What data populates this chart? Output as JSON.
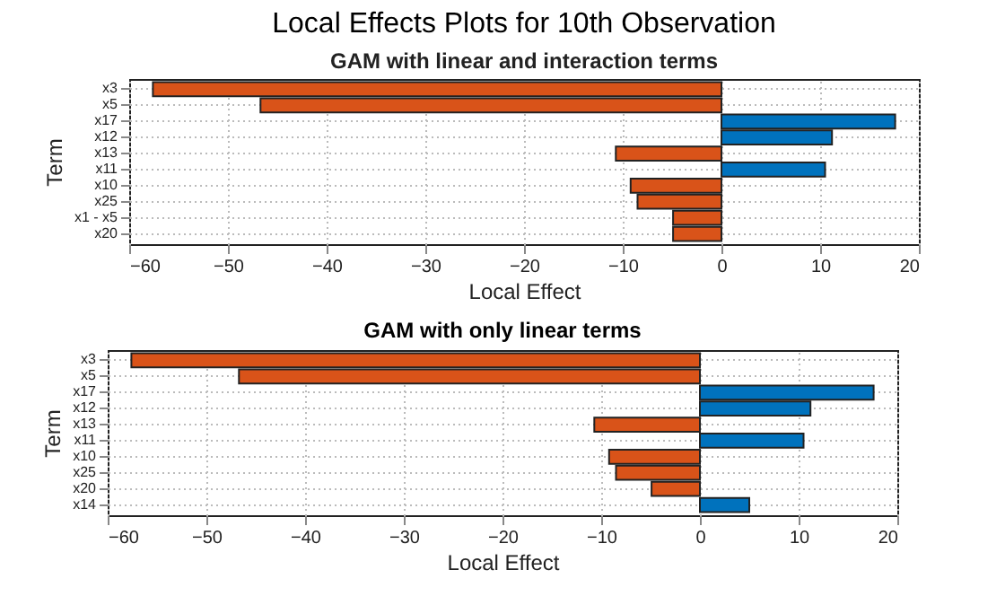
{
  "chart_data": [
    {
      "type": "bar",
      "orientation": "horizontal",
      "title": "Local Effects Plots for 10th Observation",
      "subtitle": "GAM with linear and interaction terms",
      "xlabel": "Local Effect",
      "ylabel": "Term",
      "categories": [
        "x3",
        "x5",
        "x17",
        "x12",
        "x13",
        "x11",
        "x10",
        "x25",
        "x1 - x5",
        "x20"
      ],
      "values": [
        -57.6,
        -46.7,
        17.6,
        11.2,
        -10.7,
        10.5,
        -9.2,
        -8.5,
        -4.9,
        -4.9
      ],
      "colors": [
        "#d95319",
        "#d95319",
        "#0072bd",
        "#0072bd",
        "#d95319",
        "#0072bd",
        "#d95319",
        "#d95319",
        "#d95319",
        "#d95319"
      ],
      "xlim": [
        -60,
        20
      ],
      "xticks": [
        -60,
        -50,
        -40,
        -30,
        -20,
        -10,
        0,
        10,
        20
      ],
      "grid": true
    },
    {
      "type": "bar",
      "orientation": "horizontal",
      "title": "GAM with only linear terms",
      "xlabel": "Local Effect",
      "ylabel": "Term",
      "categories": [
        "x3",
        "x5",
        "x17",
        "x12",
        "x13",
        "x11",
        "x10",
        "x25",
        "x20",
        "x14"
      ],
      "values": [
        -57.6,
        -46.7,
        17.6,
        11.2,
        -10.7,
        10.5,
        -9.2,
        -8.5,
        -4.9,
        5.0
      ],
      "colors": [
        "#d95319",
        "#d95319",
        "#0072bd",
        "#0072bd",
        "#d95319",
        "#0072bd",
        "#d95319",
        "#d95319",
        "#d95319",
        "#0072bd"
      ],
      "xlim": [
        -60,
        20
      ],
      "xticks": [
        -60,
        -50,
        -40,
        -30,
        -20,
        -10,
        0,
        10,
        20
      ],
      "grid": true
    }
  ]
}
